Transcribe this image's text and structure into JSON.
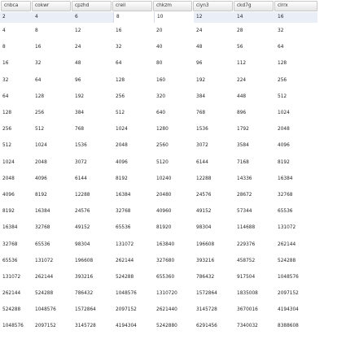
{
  "columns": [
    "cnbca",
    "cokwr",
    "cpzhd",
    "creil",
    "chkzm",
    "ciyn3",
    "ckd7g",
    "clrrx"
  ],
  "rows": [
    [
      "2",
      "4",
      "6",
      "8",
      "10",
      "12",
      "14",
      "16"
    ],
    [
      "4",
      "8",
      "12",
      "16",
      "20",
      "24",
      "28",
      "32"
    ],
    [
      "8",
      "16",
      "24",
      "32",
      "40",
      "48",
      "56",
      "64"
    ],
    [
      "16",
      "32",
      "48",
      "64",
      "80",
      "96",
      "112",
      "128"
    ],
    [
      "32",
      "64",
      "96",
      "128",
      "160",
      "192",
      "224",
      "256"
    ],
    [
      "64",
      "128",
      "192",
      "256",
      "320",
      "384",
      "448",
      "512"
    ],
    [
      "128",
      "256",
      "384",
      "512",
      "640",
      "768",
      "896",
      "1024"
    ],
    [
      "256",
      "512",
      "768",
      "1024",
      "1280",
      "1536",
      "1792",
      "2048"
    ],
    [
      "512",
      "1024",
      "1536",
      "2048",
      "2560",
      "3072",
      "3584",
      "4096"
    ],
    [
      "1024",
      "2048",
      "3072",
      "4096",
      "5120",
      "6144",
      "7168",
      "8192"
    ],
    [
      "2048",
      "4096",
      "6144",
      "8192",
      "10240",
      "12288",
      "14336",
      "16384"
    ],
    [
      "4096",
      "8192",
      "12288",
      "16384",
      "20480",
      "24576",
      "28672",
      "32768"
    ],
    [
      "8192",
      "16384",
      "24576",
      "32768",
      "40960",
      "49152",
      "57344",
      "65536"
    ],
    [
      "16384",
      "32768",
      "49152",
      "65536",
      "81920",
      "98304",
      "114688",
      "131072"
    ],
    [
      "32768",
      "65536",
      "98304",
      "131072",
      "163840",
      "196608",
      "229376",
      "262144"
    ],
    [
      "65536",
      "131072",
      "196608",
      "262144",
      "327680",
      "393216",
      "458752",
      "524288"
    ],
    [
      "131072",
      "262144",
      "393216",
      "524288",
      "655360",
      "786432",
      "917504",
      "1048576"
    ],
    [
      "262144",
      "524288",
      "786432",
      "1048576",
      "1310720",
      "1572864",
      "1835008",
      "2097152"
    ],
    [
      "524288",
      "1048576",
      "1572864",
      "2097152",
      "2621440",
      "3145728",
      "3670016",
      "4194304"
    ],
    [
      "1048576",
      "2097152",
      "3145728",
      "4194304",
      "5242880",
      "6291456",
      "7340032",
      "8388608"
    ]
  ],
  "colors": {
    "header_bg": "#e6e6e6",
    "first_row_bg": "#e9eef7",
    "text": "#1e1e1e"
  }
}
